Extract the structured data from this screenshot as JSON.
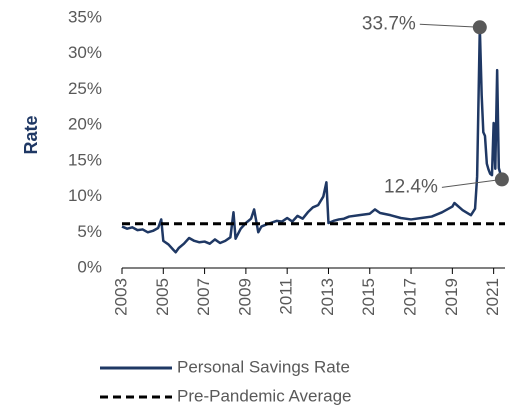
{
  "chart_data": {
    "type": "line",
    "ylabel": "Rate",
    "x": [
      2003.0,
      2003.25,
      2003.5,
      2003.75,
      2004.0,
      2004.25,
      2004.5,
      2004.75,
      2004.9,
      2005.0,
      2005.25,
      2005.5,
      2005.6,
      2005.75,
      2006.0,
      2006.25,
      2006.5,
      2006.75,
      2007.0,
      2007.25,
      2007.5,
      2007.75,
      2008.0,
      2008.25,
      2008.4,
      2008.5,
      2008.75,
      2009.0,
      2009.25,
      2009.4,
      2009.6,
      2009.75,
      2010.0,
      2010.5,
      2010.75,
      2011.0,
      2011.25,
      2011.5,
      2011.75,
      2012.0,
      2012.25,
      2012.5,
      2012.75,
      2012.9,
      2013.0,
      2013.25,
      2013.5,
      2013.75,
      2014.0,
      2014.5,
      2015.0,
      2015.25,
      2015.5,
      2016.0,
      2016.5,
      2017.0,
      2017.5,
      2018.0,
      2018.5,
      2019.0,
      2019.1,
      2019.5,
      2019.9,
      2020.1,
      2020.2,
      2020.33,
      2020.42,
      2020.5,
      2020.58,
      2020.67,
      2020.75,
      2020.83,
      2020.92,
      2021.0,
      2021.08,
      2021.17,
      2021.25,
      2021.4
    ],
    "series": [
      {
        "name": "Personal Savings Rate",
        "color": "#1f3864",
        "values": [
          5.8,
          5.5,
          5.7,
          5.3,
          5.4,
          5.0,
          5.2,
          5.6,
          6.8,
          3.8,
          3.3,
          2.5,
          2.2,
          2.8,
          3.4,
          4.2,
          3.8,
          3.6,
          3.7,
          3.4,
          4.0,
          3.5,
          3.8,
          4.3,
          7.8,
          4.1,
          5.5,
          6.3,
          6.9,
          8.2,
          5.0,
          5.8,
          6.1,
          6.6,
          6.5,
          7.0,
          6.5,
          7.3,
          6.9,
          7.8,
          8.5,
          8.8,
          10.0,
          12.0,
          6.3,
          6.6,
          6.8,
          6.9,
          7.2,
          7.4,
          7.6,
          8.2,
          7.7,
          7.4,
          7.0,
          6.8,
          7.0,
          7.2,
          7.8,
          8.6,
          9.1,
          8.1,
          7.4,
          8.3,
          12.8,
          33.7,
          24.2,
          19.0,
          18.5,
          14.6,
          13.8,
          13.2,
          13.0,
          20.3,
          13.9,
          27.7,
          14.0,
          12.4
        ],
        "value_labels": [
          null,
          null,
          null,
          null,
          null,
          null,
          null,
          null,
          null,
          null,
          null,
          null,
          null,
          null,
          null,
          null,
          null,
          null,
          null,
          null,
          null,
          null,
          null,
          null,
          null,
          null,
          null,
          null,
          null,
          null,
          null,
          null,
          null,
          null,
          null,
          null,
          null,
          null,
          null,
          null,
          null,
          null,
          null,
          null,
          null,
          null,
          null,
          null,
          null,
          null,
          null,
          null,
          null,
          null,
          null,
          null,
          null,
          null,
          null,
          null,
          null,
          null,
          null,
          null,
          null,
          "33.7%",
          null,
          null,
          null,
          null,
          null,
          null,
          null,
          null,
          null,
          null,
          null,
          "12.4%"
        ]
      }
    ],
    "reference_line": {
      "name": "Pre-Pandemic Average",
      "value": 6.2,
      "color": "#000000"
    },
    "marker_color": "#595959",
    "xlim": [
      2003,
      2021.55
    ],
    "xticks": [
      2003,
      2005,
      2007,
      2009,
      2011,
      2013,
      2015,
      2017,
      2019,
      2021
    ],
    "ylim": [
      0,
      35
    ],
    "yticks": [
      {
        "value": 0,
        "label": "0%"
      },
      {
        "value": 5,
        "label": "5%"
      },
      {
        "value": 10,
        "label": "10%"
      },
      {
        "value": 15,
        "label": "15%"
      },
      {
        "value": 20,
        "label": "20%"
      },
      {
        "value": 25,
        "label": "25%"
      },
      {
        "value": 30,
        "label": "30%"
      },
      {
        "value": 35,
        "label": "35%"
      }
    ]
  }
}
